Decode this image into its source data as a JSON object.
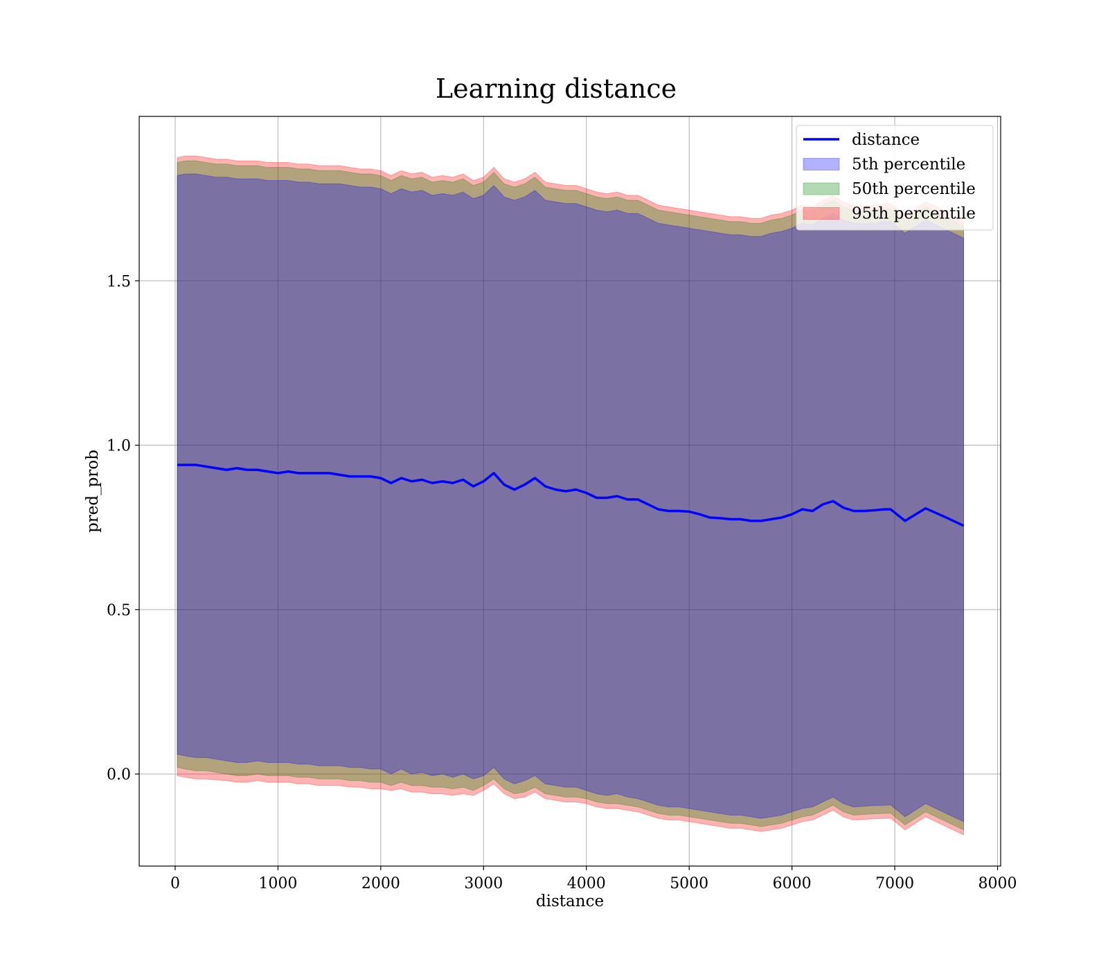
{
  "chart_data": {
    "type": "line",
    "title": "Learning distance",
    "xlabel": "distance",
    "ylabel": "pred_prob",
    "xlim": [
      -350,
      8030
    ],
    "ylim": [
      -0.28,
      2.0
    ],
    "grid": true,
    "legend_placement": "top-right",
    "x_ticks": [
      0,
      1000,
      2000,
      3000,
      4000,
      5000,
      6000,
      7000,
      8000
    ],
    "x_tick_labels": [
      "0",
      "1000",
      "2000",
      "3000",
      "4000",
      "5000",
      "6000",
      "7000",
      "8000"
    ],
    "y_ticks": [
      0.0,
      0.5,
      1.0,
      1.5
    ],
    "y_tick_labels": [
      "0.0",
      "0.5",
      "1.0",
      "1.5"
    ],
    "legend": [
      {
        "label": "distance",
        "kind": "line",
        "color": "#0000ff"
      },
      {
        "label": "5th percentile",
        "kind": "patch",
        "color": "#0000ff"
      },
      {
        "label": "50th percentile",
        "kind": "patch",
        "color": "#008000"
      },
      {
        "label": "95th percentile",
        "kind": "patch",
        "color": "#ff0000"
      }
    ],
    "x": [
      20,
      100,
      200,
      300,
      400,
      500,
      600,
      700,
      800,
      900,
      1000,
      1100,
      1200,
      1300,
      1400,
      1500,
      1600,
      1700,
      1800,
      1900,
      2000,
      2100,
      2200,
      2300,
      2400,
      2500,
      2600,
      2700,
      2800,
      2900,
      3000,
      3100,
      3200,
      3300,
      3400,
      3500,
      3600,
      3700,
      3800,
      3900,
      4000,
      4100,
      4200,
      4300,
      4400,
      4500,
      4600,
      4700,
      4800,
      4900,
      5000,
      5100,
      5200,
      5300,
      5400,
      5500,
      5600,
      5700,
      5800,
      5900,
      6000,
      6100,
      6200,
      6300,
      6400,
      6500,
      6600,
      6700,
      6800,
      6900,
      6960,
      7100,
      7300,
      7500,
      7670
    ],
    "series": [
      {
        "name": "distance",
        "color": "#0000ff",
        "values": [
          0.94,
          0.94,
          0.94,
          0.935,
          0.93,
          0.925,
          0.93,
          0.925,
          0.925,
          0.92,
          0.915,
          0.92,
          0.915,
          0.915,
          0.915,
          0.915,
          0.91,
          0.905,
          0.905,
          0.905,
          0.9,
          0.885,
          0.9,
          0.89,
          0.895,
          0.885,
          0.89,
          0.885,
          0.895,
          0.875,
          0.89,
          0.915,
          0.88,
          0.865,
          0.88,
          0.9,
          0.875,
          0.865,
          0.86,
          0.865,
          0.855,
          0.84,
          0.84,
          0.845,
          0.835,
          0.835,
          0.82,
          0.805,
          0.8,
          0.8,
          0.798,
          0.79,
          0.78,
          0.778,
          0.775,
          0.775,
          0.77,
          0.77,
          0.775,
          0.78,
          0.79,
          0.805,
          0.8,
          0.82,
          0.83,
          0.81,
          0.8,
          0.8,
          0.802,
          0.805,
          0.805,
          0.77,
          0.808,
          0.78,
          0.755
        ]
      }
    ],
    "bands": [
      {
        "name": "95th percentile",
        "color": "#ff0000",
        "lower": [
          -0.005,
          -0.01,
          -0.015,
          -0.015,
          -0.018,
          -0.02,
          -0.025,
          -0.025,
          -0.02,
          -0.025,
          -0.025,
          -0.025,
          -0.03,
          -0.03,
          -0.035,
          -0.035,
          -0.035,
          -0.04,
          -0.04,
          -0.045,
          -0.045,
          -0.05,
          -0.045,
          -0.055,
          -0.055,
          -0.06,
          -0.06,
          -0.065,
          -0.06,
          -0.065,
          -0.05,
          -0.03,
          -0.06,
          -0.075,
          -0.07,
          -0.055,
          -0.075,
          -0.08,
          -0.085,
          -0.085,
          -0.09,
          -0.1,
          -0.105,
          -0.105,
          -0.11,
          -0.115,
          -0.125,
          -0.135,
          -0.14,
          -0.14,
          -0.145,
          -0.15,
          -0.155,
          -0.16,
          -0.165,
          -0.165,
          -0.17,
          -0.175,
          -0.17,
          -0.165,
          -0.155,
          -0.145,
          -0.14,
          -0.125,
          -0.11,
          -0.13,
          -0.14,
          -0.138,
          -0.136,
          -0.135,
          -0.134,
          -0.17,
          -0.13,
          -0.16,
          -0.185
        ],
        "upper": [
          1.875,
          1.88,
          1.88,
          1.875,
          1.87,
          1.87,
          1.865,
          1.865,
          1.865,
          1.86,
          1.86,
          1.86,
          1.855,
          1.855,
          1.85,
          1.85,
          1.85,
          1.845,
          1.84,
          1.84,
          1.835,
          1.82,
          1.835,
          1.825,
          1.83,
          1.815,
          1.82,
          1.815,
          1.825,
          1.805,
          1.815,
          1.845,
          1.81,
          1.8,
          1.81,
          1.83,
          1.8,
          1.795,
          1.79,
          1.79,
          1.78,
          1.77,
          1.765,
          1.77,
          1.76,
          1.76,
          1.745,
          1.73,
          1.725,
          1.72,
          1.715,
          1.71,
          1.705,
          1.7,
          1.695,
          1.695,
          1.69,
          1.69,
          1.7,
          1.705,
          1.715,
          1.73,
          1.725,
          1.745,
          1.76,
          1.74,
          1.73,
          1.728,
          1.73,
          1.735,
          1.735,
          1.7,
          1.74,
          1.71,
          1.68
        ]
      },
      {
        "name": "50th percentile",
        "color": "#008000",
        "lower": [
          0.02,
          0.015,
          0.01,
          0.01,
          0.005,
          0.0,
          -0.005,
          -0.005,
          0.0,
          -0.005,
          -0.005,
          -0.005,
          -0.01,
          -0.01,
          -0.015,
          -0.015,
          -0.015,
          -0.02,
          -0.02,
          -0.025,
          -0.025,
          -0.035,
          -0.025,
          -0.035,
          -0.035,
          -0.04,
          -0.04,
          -0.045,
          -0.04,
          -0.05,
          -0.035,
          -0.015,
          -0.045,
          -0.06,
          -0.055,
          -0.04,
          -0.06,
          -0.065,
          -0.07,
          -0.07,
          -0.075,
          -0.085,
          -0.09,
          -0.09,
          -0.095,
          -0.1,
          -0.11,
          -0.12,
          -0.125,
          -0.125,
          -0.13,
          -0.135,
          -0.14,
          -0.145,
          -0.15,
          -0.15,
          -0.155,
          -0.16,
          -0.155,
          -0.15,
          -0.14,
          -0.13,
          -0.125,
          -0.11,
          -0.095,
          -0.115,
          -0.125,
          -0.123,
          -0.121,
          -0.12,
          -0.119,
          -0.155,
          -0.115,
          -0.145,
          -0.17
        ],
        "upper": [
          1.86,
          1.865,
          1.865,
          1.86,
          1.855,
          1.855,
          1.85,
          1.85,
          1.85,
          1.845,
          1.845,
          1.845,
          1.84,
          1.84,
          1.835,
          1.835,
          1.835,
          1.83,
          1.825,
          1.825,
          1.82,
          1.805,
          1.82,
          1.81,
          1.815,
          1.8,
          1.805,
          1.8,
          1.81,
          1.79,
          1.8,
          1.83,
          1.795,
          1.785,
          1.795,
          1.815,
          1.785,
          1.78,
          1.775,
          1.775,
          1.765,
          1.755,
          1.75,
          1.755,
          1.745,
          1.745,
          1.73,
          1.715,
          1.71,
          1.705,
          1.7,
          1.695,
          1.69,
          1.685,
          1.68,
          1.68,
          1.675,
          1.675,
          1.685,
          1.69,
          1.7,
          1.715,
          1.71,
          1.73,
          1.745,
          1.725,
          1.715,
          1.713,
          1.715,
          1.72,
          1.72,
          1.685,
          1.725,
          1.695,
          1.665
        ]
      },
      {
        "name": "5th percentile",
        "color": "#0000ff",
        "lower": [
          0.06,
          0.055,
          0.05,
          0.05,
          0.045,
          0.04,
          0.035,
          0.035,
          0.04,
          0.035,
          0.035,
          0.035,
          0.03,
          0.03,
          0.025,
          0.025,
          0.025,
          0.02,
          0.02,
          0.015,
          0.015,
          0.0,
          0.015,
          0.0,
          0.005,
          -0.005,
          0.0,
          -0.01,
          0.0,
          -0.015,
          -0.005,
          0.02,
          -0.015,
          -0.03,
          -0.02,
          -0.005,
          -0.03,
          -0.035,
          -0.04,
          -0.04,
          -0.05,
          -0.06,
          -0.065,
          -0.06,
          -0.07,
          -0.075,
          -0.085,
          -0.095,
          -0.1,
          -0.1,
          -0.105,
          -0.11,
          -0.115,
          -0.12,
          -0.125,
          -0.125,
          -0.13,
          -0.135,
          -0.13,
          -0.125,
          -0.115,
          -0.105,
          -0.1,
          -0.085,
          -0.07,
          -0.09,
          -0.1,
          -0.098,
          -0.096,
          -0.095,
          -0.094,
          -0.13,
          -0.09,
          -0.12,
          -0.145
        ],
        "upper": [
          1.82,
          1.825,
          1.825,
          1.82,
          1.815,
          1.815,
          1.81,
          1.81,
          1.81,
          1.805,
          1.805,
          1.805,
          1.8,
          1.8,
          1.795,
          1.795,
          1.795,
          1.79,
          1.785,
          1.785,
          1.78,
          1.765,
          1.78,
          1.77,
          1.775,
          1.76,
          1.765,
          1.76,
          1.77,
          1.75,
          1.76,
          1.79,
          1.755,
          1.745,
          1.755,
          1.775,
          1.745,
          1.74,
          1.735,
          1.735,
          1.725,
          1.715,
          1.71,
          1.715,
          1.705,
          1.705,
          1.69,
          1.675,
          1.67,
          1.665,
          1.66,
          1.655,
          1.65,
          1.645,
          1.64,
          1.64,
          1.635,
          1.635,
          1.645,
          1.65,
          1.66,
          1.675,
          1.67,
          1.69,
          1.705,
          1.685,
          1.675,
          1.673,
          1.675,
          1.68,
          1.68,
          1.645,
          1.685,
          1.655,
          1.63
        ]
      }
    ]
  }
}
